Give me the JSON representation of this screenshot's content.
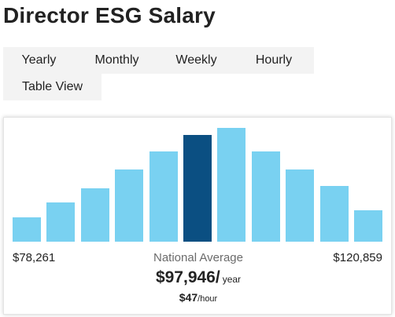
{
  "page": {
    "title": "Director ESG Salary"
  },
  "tabs": [
    {
      "label": "Yearly",
      "active": true
    },
    {
      "label": "Monthly",
      "active": false
    },
    {
      "label": "Weekly",
      "active": false
    },
    {
      "label": "Hourly",
      "active": false
    }
  ],
  "table_view": {
    "label": "Table View"
  },
  "colors": {
    "accent": "#0d7ec2",
    "bar": "#79d1f1",
    "bar_highlight": "#0b4f82"
  },
  "salary": {
    "min": "$78,261",
    "max": "$120,859",
    "average_label": "National Average",
    "average_value": "$97,946/",
    "average_unit": "year",
    "hourly_value": "$47",
    "hourly_unit": "/hour"
  },
  "chart_data": {
    "type": "bar",
    "categories": [
      "1",
      "2",
      "3",
      "4",
      "5",
      "6",
      "7",
      "8",
      "9",
      "10",
      "11"
    ],
    "values": [
      31,
      51,
      69,
      93,
      117,
      138,
      147,
      117,
      93,
      72,
      41
    ],
    "highlight_index": 5,
    "ylim": [
      0,
      150
    ]
  }
}
